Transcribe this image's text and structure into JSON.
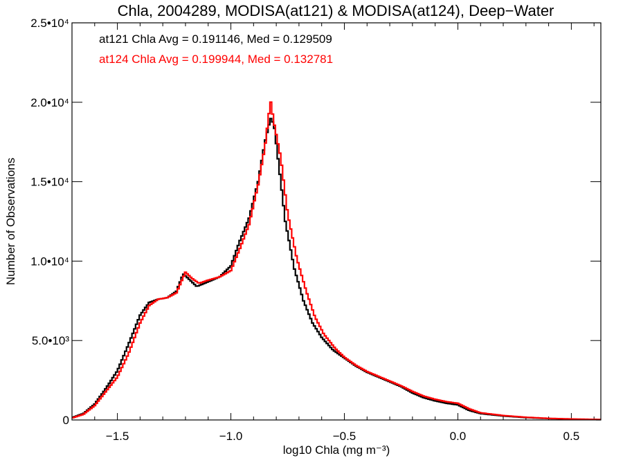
{
  "chart_data": {
    "type": "line",
    "title": "Chla, 2004289, MODISA(at121) & MODISA(at124), Deep−Water",
    "xlabel": "log10 Chla (mg m⁻³)",
    "ylabel": "Number of Observations",
    "xlim": [
      -1.7,
      0.63
    ],
    "ylim": [
      0,
      25000
    ],
    "x_ticks": [
      {
        "value": -1.5,
        "label": "−1.5"
      },
      {
        "value": -1.0,
        "label": "−1.0"
      },
      {
        "value": -0.5,
        "label": "−0.5"
      },
      {
        "value": 0.0,
        "label": "0.0"
      },
      {
        "value": 0.5,
        "label": "0.5"
      }
    ],
    "y_ticks": [
      {
        "value": 0,
        "label": "0"
      },
      {
        "value": 5000,
        "label": "5.0•10³"
      },
      {
        "value": 10000,
        "label": "1.0•10⁴"
      },
      {
        "value": 15000,
        "label": "1.5•10⁴"
      },
      {
        "value": 20000,
        "label": "2.0•10⁴"
      },
      {
        "value": 25000,
        "label": "2.5•10⁴"
      }
    ],
    "annotations": [
      {
        "text": "at121 Chla Avg = 0.191146, Med = 0.129509",
        "color": "#000000"
      },
      {
        "text": "at124 Chla Avg = 0.199944, Med = 0.132781",
        "color": "#ff0000"
      }
    ],
    "series": [
      {
        "color": "#000000",
        "points": [
          [
            -1.7,
            150
          ],
          [
            -1.65,
            400
          ],
          [
            -1.6,
            1000
          ],
          [
            -1.55,
            2000
          ],
          [
            -1.5,
            3100
          ],
          [
            -1.45,
            4800
          ],
          [
            -1.4,
            6600
          ],
          [
            -1.36,
            7400
          ],
          [
            -1.32,
            7600
          ],
          [
            -1.28,
            7700
          ],
          [
            -1.24,
            8100
          ],
          [
            -1.21,
            9200
          ],
          [
            -1.18,
            8800
          ],
          [
            -1.15,
            8400
          ],
          [
            -1.1,
            8700
          ],
          [
            -1.05,
            9000
          ],
          [
            -1.0,
            9700
          ],
          [
            -0.96,
            11300
          ],
          [
            -0.92,
            12700
          ],
          [
            -0.88,
            15000
          ],
          [
            -0.85,
            17500
          ],
          [
            -0.825,
            19000
          ],
          [
            -0.81,
            18600
          ],
          [
            -0.79,
            16200
          ],
          [
            -0.76,
            12500
          ],
          [
            -0.72,
            9500
          ],
          [
            -0.68,
            7500
          ],
          [
            -0.64,
            6100
          ],
          [
            -0.6,
            5200
          ],
          [
            -0.55,
            4400
          ],
          [
            -0.5,
            3900
          ],
          [
            -0.45,
            3400
          ],
          [
            -0.4,
            3000
          ],
          [
            -0.35,
            2700
          ],
          [
            -0.3,
            2400
          ],
          [
            -0.25,
            2100
          ],
          [
            -0.2,
            1700
          ],
          [
            -0.15,
            1400
          ],
          [
            -0.1,
            1200
          ],
          [
            -0.05,
            1050
          ],
          [
            0.0,
            950
          ],
          [
            0.05,
            600
          ],
          [
            0.1,
            400
          ],
          [
            0.2,
            250
          ],
          [
            0.3,
            150
          ],
          [
            0.4,
            90
          ],
          [
            0.5,
            50
          ],
          [
            0.63,
            20
          ]
        ]
      },
      {
        "color": "#ff0000",
        "points": [
          [
            -1.7,
            120
          ],
          [
            -1.65,
            350
          ],
          [
            -1.6,
            900
          ],
          [
            -1.55,
            1800
          ],
          [
            -1.5,
            2700
          ],
          [
            -1.45,
            4200
          ],
          [
            -1.4,
            6100
          ],
          [
            -1.36,
            7200
          ],
          [
            -1.32,
            7600
          ],
          [
            -1.28,
            7700
          ],
          [
            -1.24,
            8000
          ],
          [
            -1.2,
            9300
          ],
          [
            -1.17,
            8900
          ],
          [
            -1.14,
            8600
          ],
          [
            -1.1,
            8800
          ],
          [
            -1.05,
            9000
          ],
          [
            -1.0,
            9400
          ],
          [
            -0.96,
            10800
          ],
          [
            -0.92,
            12300
          ],
          [
            -0.88,
            14800
          ],
          [
            -0.85,
            17200
          ],
          [
            -0.825,
            20100
          ],
          [
            -0.81,
            18700
          ],
          [
            -0.78,
            16500
          ],
          [
            -0.75,
            13000
          ],
          [
            -0.71,
            10200
          ],
          [
            -0.67,
            8200
          ],
          [
            -0.63,
            6500
          ],
          [
            -0.59,
            5400
          ],
          [
            -0.54,
            4500
          ],
          [
            -0.5,
            3950
          ],
          [
            -0.45,
            3450
          ],
          [
            -0.4,
            3050
          ],
          [
            -0.35,
            2750
          ],
          [
            -0.3,
            2450
          ],
          [
            -0.25,
            2150
          ],
          [
            -0.2,
            1800
          ],
          [
            -0.15,
            1500
          ],
          [
            -0.1,
            1300
          ],
          [
            -0.05,
            1150
          ],
          [
            0.0,
            1050
          ],
          [
            0.05,
            700
          ],
          [
            0.1,
            450
          ],
          [
            0.2,
            280
          ],
          [
            0.3,
            170
          ],
          [
            0.4,
            100
          ],
          [
            0.5,
            60
          ],
          [
            0.63,
            25
          ]
        ]
      }
    ]
  }
}
